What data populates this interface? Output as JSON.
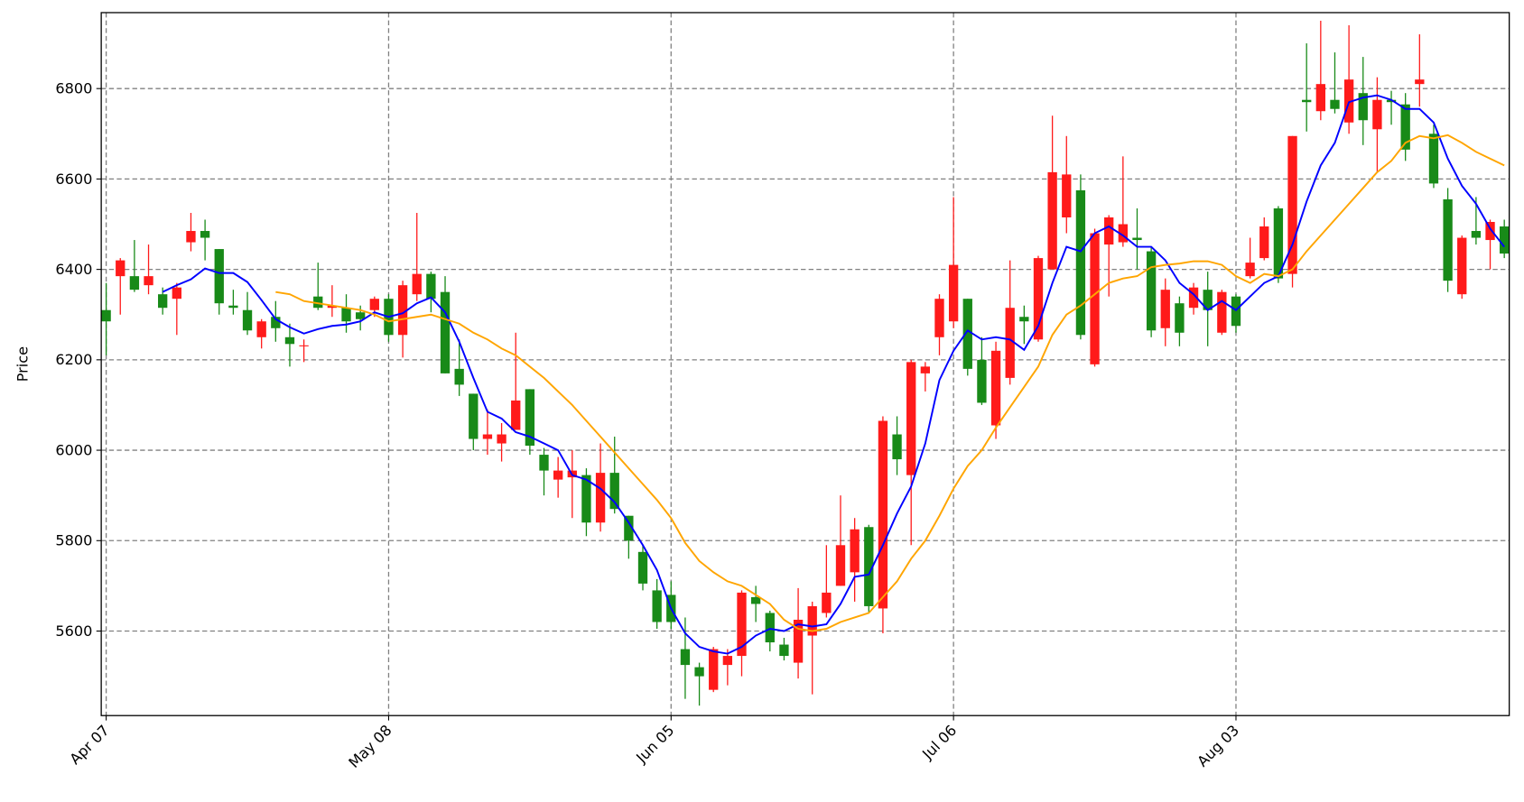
{
  "chart_data": {
    "type": "candlestick",
    "y_label": "Price",
    "categories": [
      "Apr 07",
      null,
      null,
      null,
      null,
      null,
      null,
      null,
      null,
      null,
      null,
      null,
      null,
      null,
      null,
      null,
      null,
      null,
      null,
      null,
      "May 08",
      null,
      null,
      null,
      null,
      null,
      null,
      null,
      null,
      null,
      null,
      null,
      null,
      null,
      null,
      null,
      null,
      null,
      null,
      null,
      "Jun 05",
      null,
      null,
      null,
      null,
      null,
      null,
      null,
      null,
      null,
      null,
      null,
      null,
      null,
      null,
      null,
      null,
      null,
      null,
      null,
      "Jul 06",
      null,
      null,
      null,
      null,
      null,
      null,
      null,
      null,
      null,
      null,
      null,
      null,
      null,
      null,
      null,
      null,
      null,
      null,
      null,
      "Aug 03",
      null,
      null,
      null,
      null,
      null,
      null,
      null,
      null,
      null,
      null,
      null,
      null,
      null,
      null,
      null,
      null,
      null,
      null,
      null
    ],
    "open": [
      6310,
      6385,
      6385,
      6365,
      6345,
      6335,
      6460,
      6485,
      6445,
      6320,
      6310,
      6250,
      6295,
      6250,
      6230,
      6340,
      6315,
      6315,
      6305,
      6310,
      6335,
      6255,
      6345,
      6390,
      6350,
      6180,
      6125,
      6025,
      6015,
      6045,
      6135,
      5990,
      5935,
      5940,
      5945,
      5840,
      5950,
      5855,
      5775,
      5690,
      5680,
      5560,
      5520,
      5470,
      5525,
      5545,
      5675,
      5640,
      5570,
      5530,
      5590,
      5640,
      5700,
      5730,
      5830,
      5650,
      6035,
      5945,
      6170,
      6250,
      6285,
      6335,
      6200,
      6055,
      6160,
      6295,
      6245,
      6400,
      6515,
      6575,
      6190,
      6455,
      6460,
      6470,
      6440,
      6270,
      6325,
      6315,
      6355,
      6260,
      6340,
      6385,
      6425,
      6535,
      6390,
      6775,
      6750,
      6775,
      6725,
      6790,
      6710,
      6775,
      6765,
      6810,
      6700,
      6555,
      6345,
      6485,
      6465,
      6495
    ],
    "high": [
      6370,
      6425,
      6465,
      6455,
      6360,
      6370,
      6525,
      6510,
      6445,
      6355,
      6350,
      6290,
      6330,
      6280,
      6245,
      6415,
      6365,
      6345,
      6320,
      6340,
      6345,
      6375,
      6525,
      6395,
      6385,
      6245,
      6125,
      6090,
      6060,
      6260,
      6135,
      6005,
      5985,
      6000,
      5960,
      6015,
      6030,
      5855,
      5790,
      5715,
      5710,
      5630,
      5530,
      5565,
      5560,
      5690,
      5700,
      5645,
      5585,
      5695,
      5665,
      5790,
      5900,
      5850,
      5835,
      6075,
      6075,
      6200,
      6195,
      6345,
      6560,
      6335,
      6250,
      6240,
      6420,
      6320,
      6430,
      6740,
      6695,
      6610,
      6490,
      6520,
      6650,
      6535,
      6450,
      6380,
      6340,
      6370,
      6395,
      6355,
      6345,
      6470,
      6515,
      6540,
      6695,
      6900,
      6950,
      6880,
      6940,
      6870,
      6825,
      6795,
      6790,
      6920,
      6720,
      6580,
      6475,
      6560,
      6510,
      6510
    ],
    "low": [
      6210,
      6300,
      6350,
      6345,
      6300,
      6255,
      6440,
      6420,
      6300,
      6300,
      6255,
      6225,
      6240,
      6185,
      6195,
      6310,
      6295,
      6260,
      6265,
      6295,
      6240,
      6205,
      6330,
      6305,
      6170,
      6120,
      6000,
      5990,
      5975,
      6045,
      5990,
      5900,
      5895,
      5850,
      5810,
      5820,
      5860,
      5760,
      5690,
      5605,
      5605,
      5450,
      5435,
      5465,
      5480,
      5500,
      5620,
      5555,
      5535,
      5495,
      5460,
      5630,
      5700,
      5665,
      5640,
      5595,
      5945,
      5790,
      6130,
      6210,
      6270,
      6165,
      6100,
      6025,
      6145,
      6235,
      6240,
      6400,
      6480,
      6245,
      6185,
      6340,
      6450,
      6400,
      6250,
      6230,
      6230,
      6300,
      6230,
      6255,
      6260,
      6380,
      6420,
      6370,
      6360,
      6705,
      6730,
      6745,
      6700,
      6675,
      6615,
      6720,
      6640,
      6760,
      6580,
      6350,
      6335,
      6455,
      6400,
      6425
    ],
    "close": [
      6285,
      6420,
      6355,
      6385,
      6315,
      6360,
      6485,
      6470,
      6325,
      6315,
      6265,
      6285,
      6270,
      6235,
      6232,
      6315,
      6320,
      6285,
      6290,
      6335,
      6255,
      6365,
      6390,
      6335,
      6170,
      6145,
      6025,
      6035,
      6035,
      6110,
      6010,
      5955,
      5955,
      5955,
      5840,
      5950,
      5870,
      5800,
      5705,
      5620,
      5620,
      5525,
      5500,
      5560,
      5545,
      5685,
      5660,
      5575,
      5545,
      5625,
      5655,
      5685,
      5790,
      5825,
      5655,
      6065,
      5980,
      6195,
      6185,
      6335,
      6410,
      6180,
      6105,
      6220,
      6315,
      6285,
      6425,
      6615,
      6610,
      6255,
      6480,
      6515,
      6500,
      6465,
      6265,
      6355,
      6260,
      6360,
      6310,
      6350,
      6275,
      6415,
      6495,
      6380,
      6695,
      6770,
      6810,
      6755,
      6820,
      6730,
      6775,
      6770,
      6665,
      6820,
      6590,
      6375,
      6470,
      6470,
      6505,
      6435
    ],
    "up_color": "#ff1a1a",
    "down_color": "#188a18",
    "lines": [
      {
        "color": "#0000ff",
        "values": [
          null,
          null,
          null,
          null,
          6350,
          6365,
          6378,
          6402,
          6392,
          6392,
          6372,
          6332,
          6290,
          6272,
          6258,
          6268,
          6275,
          6278,
          6285,
          6305,
          6295,
          6303,
          6325,
          6338,
          6305,
          6240,
          6160,
          6085,
          6070,
          6040,
          6030,
          6015,
          6000,
          5945,
          5935,
          5915,
          5885,
          5840,
          5790,
          5735,
          5650,
          5595,
          5565,
          5555,
          5550,
          5565,
          5590,
          5605,
          5600,
          5615,
          5610,
          5615,
          5660,
          5720,
          5725,
          5790,
          5860,
          5920,
          6015,
          6155,
          6220,
          6265,
          6245,
          6250,
          6245,
          6222,
          6275,
          6370,
          6450,
          6440,
          6480,
          6495,
          6475,
          6450,
          6450,
          6420,
          6370,
          6345,
          6310,
          6330,
          6310,
          6340,
          6370,
          6385,
          6455,
          6550,
          6630,
          6680,
          6770,
          6780,
          6785,
          6775,
          6755,
          6755,
          6725,
          6645,
          6585,
          6545,
          6490,
          6450
        ]
      },
      {
        "color": "#ffa500",
        "values": [
          null,
          null,
          null,
          null,
          null,
          null,
          null,
          null,
          null,
          null,
          null,
          null,
          6350,
          6345,
          6330,
          6325,
          6320,
          6315,
          6310,
          6300,
          6285,
          6290,
          6295,
          6300,
          6290,
          6280,
          6260,
          6245,
          6225,
          6210,
          6185,
          6160,
          6130,
          6100,
          6065,
          6030,
          5995,
          5960,
          5925,
          5890,
          5850,
          5795,
          5755,
          5730,
          5710,
          5700,
          5680,
          5660,
          5625,
          5605,
          5600,
          5605,
          5620,
          5630,
          5640,
          5675,
          5710,
          5760,
          5800,
          5855,
          5915,
          5965,
          6000,
          6050,
          6095,
          6140,
          6185,
          6255,
          6300,
          6320,
          6345,
          6370,
          6380,
          6385,
          6405,
          6410,
          6413,
          6418,
          6418,
          6410,
          6385,
          6370,
          6390,
          6385,
          6400,
          6440,
          6475,
          6510,
          6545,
          6580,
          6615,
          6640,
          6680,
          6695,
          6690,
          6697,
          6680,
          6660,
          6645,
          6630
        ]
      }
    ],
    "xlim": [
      -0.35,
      99.35
    ],
    "xticks": [
      0,
      20,
      40,
      60,
      80
    ],
    "ylim": [
      5413,
      6968
    ],
    "yticks": [
      5600,
      5800,
      6000,
      6200,
      6400,
      6600,
      6800
    ],
    "grid": true
  }
}
